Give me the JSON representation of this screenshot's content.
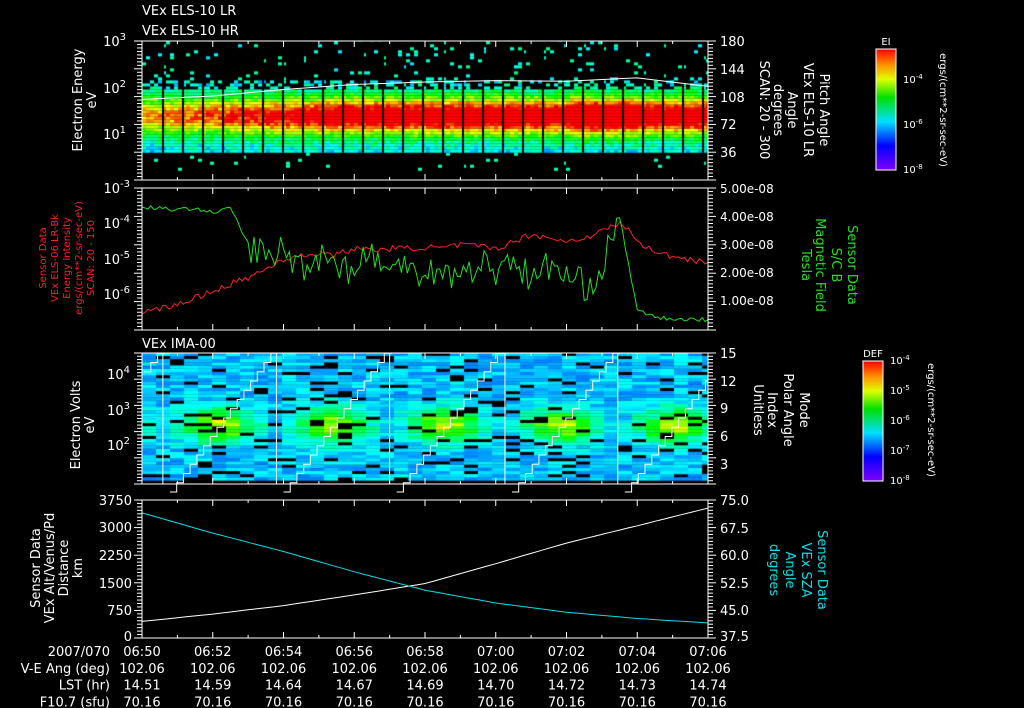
{
  "panels": {
    "els": {
      "titles": [
        "VEx ELS-10 LR",
        "VEx ELS-10 HR"
      ],
      "ylabel": [
        "Electron Energy",
        "eV"
      ],
      "yticks": [
        {
          "base": "10",
          "exp": "3"
        },
        {
          "base": "10",
          "exp": "2"
        },
        {
          "base": "10",
          "exp": "1"
        }
      ],
      "right_ticks": [
        "180",
        "144",
        "108",
        "72",
        "36"
      ],
      "right_label": [
        "Pitch Angle",
        "VEx ELS-10 LR",
        "Angle",
        "degrees",
        "SCAN: 20 - 300"
      ],
      "colorbar": {
        "title": "EI",
        "ticks": [
          {
            "base": "10",
            "exp": "-4"
          },
          {
            "base": "10",
            "exp": "-6"
          },
          {
            "base": "10",
            "exp": "-8"
          }
        ],
        "units": "ergs/(cm**2-sr-sec-eV)"
      }
    },
    "mag": {
      "left_label": [
        "Sensor Data",
        "VEx ELS-06 LR-Bk",
        "Energy Intensity",
        "ergs/(cm**2-sr-sec-eV)",
        "SCAN: 20 - 150"
      ],
      "yticks": [
        {
          "base": "10",
          "exp": "-3"
        },
        {
          "base": "10",
          "exp": "-4"
        },
        {
          "base": "10",
          "exp": "-5"
        },
        {
          "base": "10",
          "exp": "-6"
        }
      ],
      "right_ticks": [
        "5.00e-08",
        "4.00e-08",
        "3.00e-08",
        "2.00e-08",
        "1.00e-08"
      ],
      "right_label": [
        "Sensor Data",
        "S/C  B",
        "Magnetic Field",
        "Tesla"
      ]
    },
    "ima": {
      "title": "VEx IMA-00",
      "ylabel": [
        "Electron Volts",
        "eV"
      ],
      "yticks": [
        {
          "base": "10",
          "exp": "4"
        },
        {
          "base": "10",
          "exp": "3"
        },
        {
          "base": "10",
          "exp": "2"
        }
      ],
      "right_ticks": [
        "15",
        "12",
        "9",
        "6",
        "3"
      ],
      "right_label": [
        "Mode",
        "Polar Angle",
        "Index",
        "Unitless"
      ],
      "colorbar": {
        "title": "DEF",
        "ticks": [
          {
            "base": "10",
            "exp": "-4"
          },
          {
            "base": "10",
            "exp": "-5"
          },
          {
            "base": "10",
            "exp": "-6"
          },
          {
            "base": "10",
            "exp": "-7"
          },
          {
            "base": "10",
            "exp": "-8"
          }
        ],
        "units": "ergs/(cm**2-sr-sec-eV)"
      }
    },
    "orbit": {
      "left_label": [
        "Sensor Data",
        "VEx Alt/Venus/Pd",
        "Distance",
        "km"
      ],
      "yticks": [
        "3750",
        "3000",
        "2250",
        "1500",
        "750",
        "0"
      ],
      "right_ticks": [
        "75.0",
        "67.5",
        "60.0",
        "52.5",
        "45.0",
        "37.5"
      ],
      "right_label": [
        "Sensor Data",
        "VEx SZA",
        "Angle",
        "degrees"
      ]
    }
  },
  "time_axis": {
    "rows": [
      {
        "label": "2007/070",
        "values": [
          "06:50",
          "06:52",
          "06:54",
          "06:56",
          "06:58",
          "07:00",
          "07:02",
          "07:04",
          "07:06"
        ]
      },
      {
        "label": "V-E Ang (deg)",
        "values": [
          "102.06",
          "102.06",
          "102.06",
          "102.06",
          "102.06",
          "102.06",
          "102.06",
          "102.06",
          "102.06"
        ]
      },
      {
        "label": "LST (hr)",
        "values": [
          "14.51",
          "14.59",
          "14.64",
          "14.67",
          "14.69",
          "14.70",
          "14.72",
          "14.73",
          "14.74"
        ]
      },
      {
        "label": "F10.7 (sfu)",
        "values": [
          "70.16",
          "70.16",
          "70.16",
          "70.16",
          "70.16",
          "70.16",
          "70.16",
          "70.16",
          "70.16"
        ]
      }
    ]
  },
  "colors": {
    "background": "#000000",
    "axes": "#ffffff",
    "energy_intensity": "#ff2020",
    "magnetic_field": "#20e020",
    "sza": "#00e0e8",
    "distance": "#ffffff"
  },
  "chart_data": [
    {
      "type": "heatmap",
      "name": "ELS electron spectrogram",
      "x_range_minutes_after_0650": [
        0,
        16
      ],
      "ylabel": "Electron Energy (eV)",
      "ylim_log10": [
        0,
        3
      ],
      "colorbar_log10": [
        -8,
        -3
      ],
      "peak_energy_eV": 20,
      "peak_time_minutes": 13,
      "overlay": {
        "name": "pitch angle",
        "t": [
          0,
          2,
          4,
          6,
          8,
          10,
          12,
          14,
          16
        ],
        "values_eV": [
          55,
          65,
          90,
          115,
          130,
          140,
          135,
          160,
          105
        ]
      }
    },
    {
      "type": "line",
      "name": "Magnetometer / energy intensity",
      "t": [
        0,
        0.5,
        1,
        1.5,
        2,
        2.5,
        3,
        3.5,
        4,
        4.5,
        5,
        5.5,
        6,
        6.5,
        7,
        7.5,
        8,
        8.5,
        9,
        9.5,
        10,
        10.5,
        11,
        11.5,
        12,
        12.5,
        13,
        13.5,
        14,
        14.5,
        15,
        15.5,
        16
      ],
      "series": [
        {
          "name": "Energy Intensity",
          "axis": "left",
          "scale": "log",
          "ylim": [
            1e-07,
            0.001
          ],
          "values": [
            3e-07,
            4e-07,
            5e-07,
            8e-07,
            1.2e-06,
            2e-06,
            3e-06,
            5e-06,
            1e-05,
            1.2e-05,
            1.5e-05,
            1.3e-05,
            2e-05,
            1.8e-05,
            2e-05,
            2e-05,
            2.2e-05,
            2e-05,
            2.5e-05,
            2.3e-05,
            2e-05,
            3e-05,
            5e-05,
            4e-05,
            3e-05,
            4e-05,
            6e-05,
            0.0001,
            3e-05,
            1.5e-05,
            1.2e-05,
            1e-05,
            8e-06
          ]
        },
        {
          "name": "Magnetic Field (1e-8 T)",
          "axis": "right",
          "scale": "linear",
          "ylim": [
            0,
            5.07
          ],
          "values": [
            4.3,
            4.3,
            4.2,
            4.3,
            4.1,
            4.3,
            3.0,
            2.5,
            2.8,
            2.2,
            2.6,
            2.4,
            2.0,
            2.8,
            1.8,
            2.5,
            1.9,
            2.2,
            1.7,
            2.4,
            2.0,
            2.6,
            1.6,
            2.3,
            1.8,
            1.5,
            2.1,
            4.0,
            0.6,
            0.4,
            0.3,
            0.3,
            0.3
          ]
        }
      ]
    },
    {
      "type": "heatmap",
      "name": "IMA ion spectrogram",
      "ylabel": "Electron Volts (eV)",
      "ylim_log10": [
        0.9,
        4.59
      ],
      "colorbar_log10": [
        -8,
        -4
      ],
      "scan_boundaries_minutes": [
        0.59,
        3.8,
        7.0,
        10.26,
        13.45
      ],
      "overlay": {
        "name": "polar angle index",
        "range": [
          0,
          15
        ]
      }
    },
    {
      "type": "line",
      "name": "Orbit",
      "t": [
        0,
        2,
        4,
        6,
        8,
        10,
        12,
        14,
        16
      ],
      "series": [
        {
          "name": "Distance (km)",
          "axis": "left",
          "ylim": [
            0,
            3750
          ],
          "values": [
            450,
            650,
            880,
            1170,
            1480,
            2020,
            2580,
            3050,
            3530
          ]
        },
        {
          "name": "SZA (degrees)",
          "axis": "right",
          "ylim": [
            37.5,
            75
          ],
          "values": [
            71.5,
            66,
            61,
            55.5,
            50.5,
            47,
            44.5,
            42.8,
            41.6
          ]
        }
      ]
    }
  ]
}
